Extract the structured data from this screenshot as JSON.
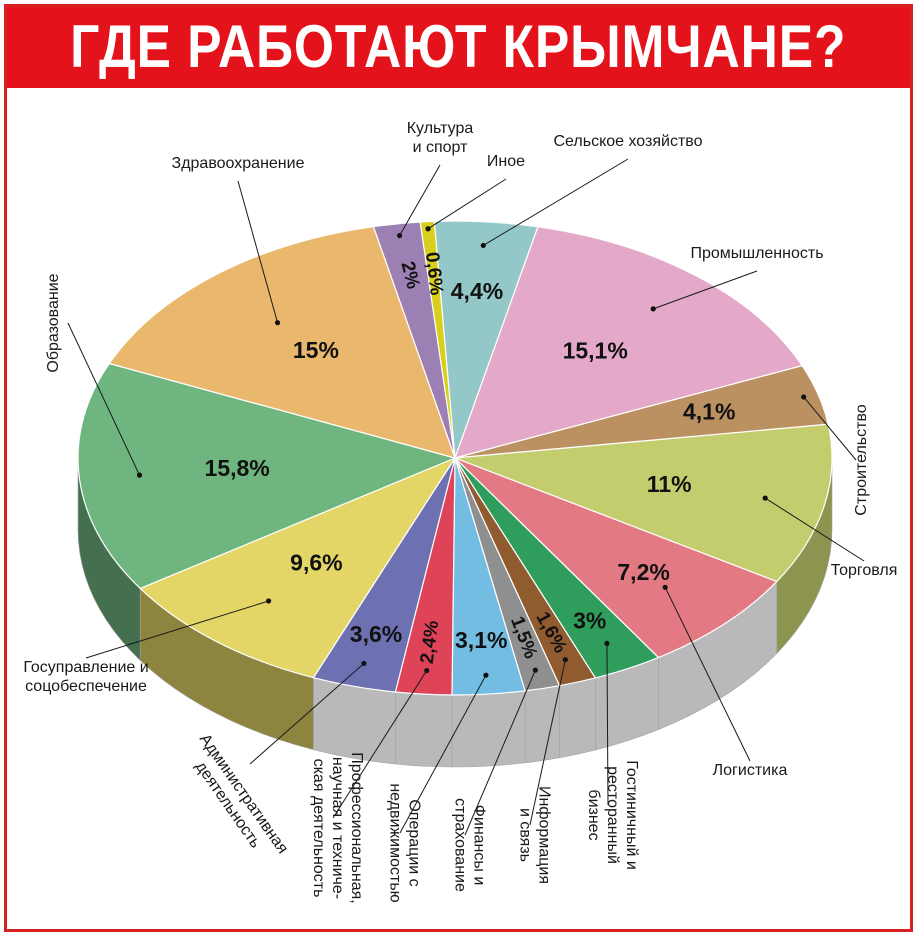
{
  "title": "ГДЕ РАБОТАЮТ КРЫМЧАНЕ?",
  "colors": {
    "title_bg": "#e3121b",
    "frame": "#d7201f",
    "side": "#b9b9b9"
  },
  "chart_data": {
    "type": "pie",
    "title": "ГДЕ РАБОТАЮТ КРЫМЧАНЕ?",
    "unit": "%",
    "slices": [
      {
        "label": [
          "Культура",
          "и спорт"
        ],
        "value": 2,
        "value_label": "2%",
        "color": "#9c7fb3"
      },
      {
        "label": [
          "Иное"
        ],
        "value": 0.6,
        "value_label": "0,6%",
        "color": "#d8cf1a"
      },
      {
        "label": [
          "Сельское хозяйство"
        ],
        "value": 4.4,
        "value_label": "4,4%",
        "color": "#94c8c8"
      },
      {
        "label": [
          "Промышленность"
        ],
        "value": 15.1,
        "value_label": "15,1%",
        "color": "#e4a9c8"
      },
      {
        "label": [
          "Строительство"
        ],
        "value": 4.1,
        "value_label": "4,1%",
        "color": "#bc9162"
      },
      {
        "label": [
          "Торговля"
        ],
        "value": 11,
        "value_label": "11%",
        "color": "#c3cd6e"
      },
      {
        "label": [
          "Логистика"
        ],
        "value": 7.2,
        "value_label": "7,2%",
        "color": "#e27983"
      },
      {
        "label": [
          "Гостиничный и",
          "ресторанный",
          "бизнес"
        ],
        "value": 3,
        "value_label": "3%",
        "color": "#2f9e5d"
      },
      {
        "label": [
          "Информация",
          "и связь"
        ],
        "value": 1.6,
        "value_label": "1,6%",
        "color": "#8f5b2f"
      },
      {
        "label": [
          "Финансы и",
          "страхование"
        ],
        "value": 1.5,
        "value_label": "1,5%",
        "color": "#8f8f8f"
      },
      {
        "label": [
          "Операции с",
          "недвижимостью"
        ],
        "value": 3.1,
        "value_label": "3,1%",
        "color": "#73bde2"
      },
      {
        "label": [
          "Профессиональная,",
          "научная и техниче-",
          "ская деятельность"
        ],
        "value": 2.4,
        "value_label": "2,4%",
        "color": "#df4358"
      },
      {
        "label": [
          "Административная",
          "деятельность"
        ],
        "value": 3.6,
        "value_label": "3,6%",
        "color": "#6d70b1"
      },
      {
        "label": [
          "Госуправление и",
          "соцобеспечение"
        ],
        "value": 9.6,
        "value_label": "9,6%",
        "color": "#e3d666"
      },
      {
        "label": [
          "Образование"
        ],
        "value": 15.8,
        "value_label": "15,8%",
        "color": "#6fb57f"
      },
      {
        "label": [
          "Здравоохранение"
        ],
        "value": 15,
        "value_label": "15%",
        "color": "#e9b86c"
      }
    ]
  }
}
